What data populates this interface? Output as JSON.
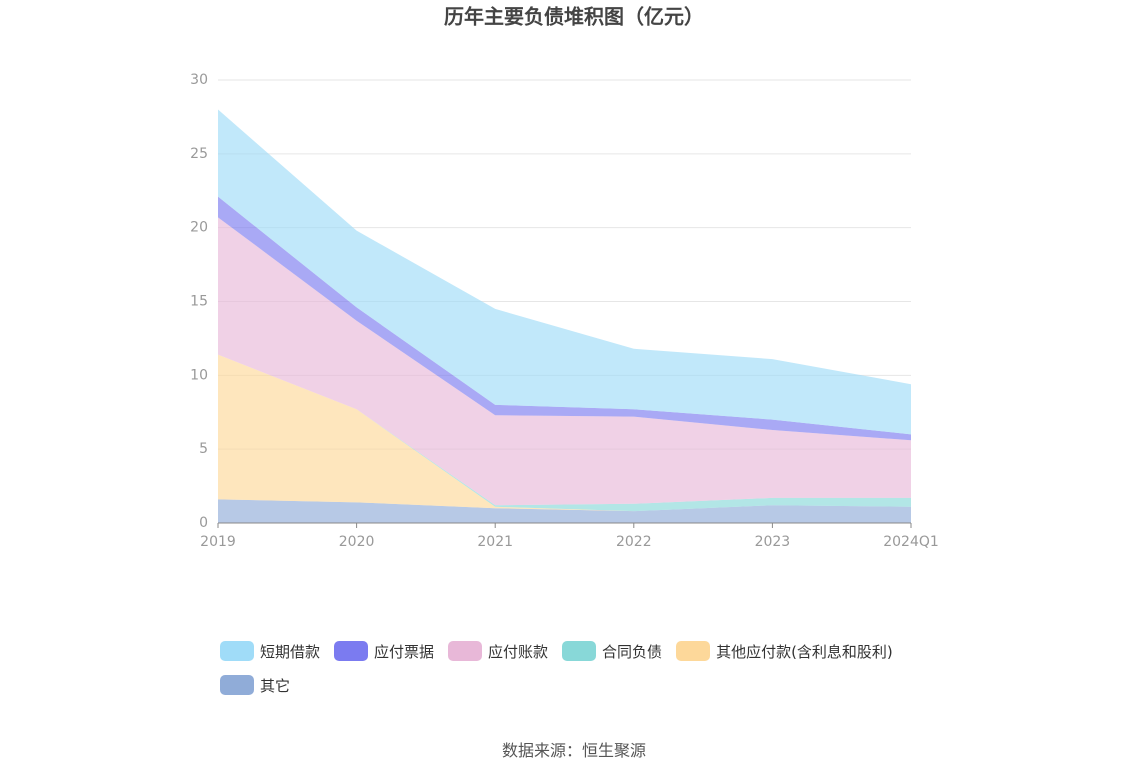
{
  "chart_data": {
    "type": "area",
    "stacked": true,
    "title": "历年主要负债堆积图（亿元）",
    "source": "数据来源：恒生聚源",
    "categories": [
      "2019",
      "2020",
      "2021",
      "2022",
      "2023",
      "2024Q1"
    ],
    "ylim": [
      0,
      30
    ],
    "yticks": [
      0,
      5,
      10,
      15,
      20,
      25,
      30
    ],
    "grid": true,
    "series": [
      {
        "name": "其它",
        "color": "#90acd8",
        "values": [
          1.6,
          1.4,
          1.0,
          0.8,
          1.2,
          1.1
        ]
      },
      {
        "name": "其他应付款(含利息和股利)",
        "color": "#fdd89a",
        "values": [
          9.8,
          6.3,
          0.1,
          0,
          0,
          0
        ]
      },
      {
        "name": "合同负债",
        "color": "#88d8d8",
        "values": [
          0,
          0,
          0.1,
          0.5,
          0.5,
          0.6
        ]
      },
      {
        "name": "应付账款",
        "color": "#e8b8d8",
        "values": [
          9.3,
          6.0,
          6.1,
          5.9,
          4.6,
          3.9
        ]
      },
      {
        "name": "应付票据",
        "color": "#7b7bf0",
        "values": [
          1.4,
          0.9,
          0.7,
          0.5,
          0.7,
          0.4
        ]
      },
      {
        "name": "短期借款",
        "color": "#a0dcf8",
        "values": [
          5.9,
          5.2,
          6.5,
          4.1,
          4.1,
          3.4
        ]
      }
    ],
    "legend_order": [
      5,
      4,
      3,
      2,
      1,
      0
    ]
  }
}
